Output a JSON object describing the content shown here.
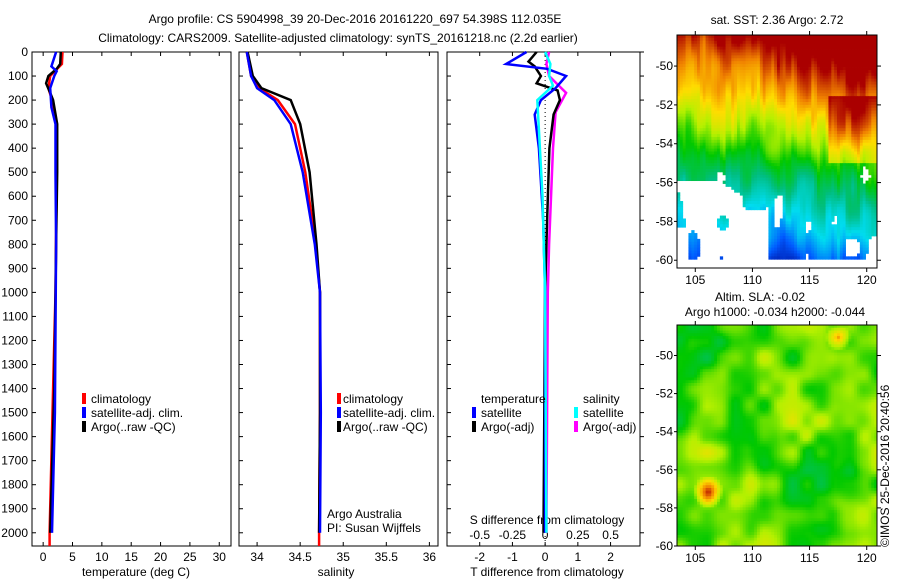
{
  "title_line1": "Argo profile: CS 5904998_39 20-Dec-2016 20161220_697 54.398S 112.035E",
  "title_line2": "Climatology: CARS2009. Satellite-adjusted climatology: synTS_20161218.nc (2.2d earlier)",
  "credit": "©IMOS 25-Dec-2016 20:40:56",
  "colors": {
    "climatology": "#ff0000",
    "satellite": "#0000ff",
    "argo": "#000000",
    "sal_satellite": "#00ffff",
    "sal_argo": "#ff00ff"
  },
  "chart_data": [
    {
      "type": "line",
      "name": "temperature",
      "xlabel": "temperature (deg C)",
      "xlim": [
        -1.9,
        32
      ],
      "xticks": [
        0,
        5,
        10,
        15,
        20,
        25,
        30
      ],
      "ylim": [
        0,
        2055
      ],
      "yticks": [
        0,
        100,
        200,
        300,
        400,
        500,
        600,
        700,
        800,
        900,
        1000,
        1100,
        1200,
        1300,
        1400,
        1500,
        1600,
        1700,
        1800,
        1900,
        2000
      ],
      "legend": [
        "climatology",
        "satellite-adj. clim.",
        "Argo(..raw -QC)"
      ],
      "series": [
        {
          "name": "climatology",
          "depth": [
            0,
            50,
            100,
            150,
            200,
            300,
            500,
            1000,
            1500,
            2000,
            2055
          ],
          "values": [
            3.3,
            3.2,
            1.2,
            0.9,
            1.5,
            2.3,
            2.3,
            2.1,
            1.6,
            1.1,
            1.1
          ]
        },
        {
          "name": "satellite-adj. clim.",
          "depth": [
            0,
            60,
            80,
            100,
            150,
            230,
            300,
            500,
            800,
            1500,
            2000
          ],
          "values": [
            2.2,
            1.4,
            2.3,
            1.9,
            1.2,
            1.4,
            2.1,
            2.1,
            2.2,
            2.0,
            1.5
          ]
        },
        {
          "name": "Argo(..raw -QC)",
          "depth": [
            0,
            50,
            70,
            100,
            130,
            170,
            200,
            300,
            500,
            800,
            1400,
            2000
          ],
          "values": [
            3.0,
            2.9,
            2.3,
            0.9,
            0.5,
            1.2,
            1.7,
            2.4,
            2.4,
            2.2,
            1.9,
            1.2
          ]
        }
      ]
    },
    {
      "type": "line",
      "name": "salinity",
      "xlabel": "salinity",
      "xlim": [
        33.79,
        36.1
      ],
      "xticks": [
        "34",
        "34.5",
        "35",
        "35.5",
        "36"
      ],
      "ylim": [
        0,
        2055
      ],
      "legend": [
        "climatology",
        "satellite-adj. clim.",
        "Argo(..raw -QC)"
      ],
      "annotation": [
        "Argo Australia",
        "PI: Susan Wijffels"
      ],
      "series": [
        {
          "name": "climatology",
          "depth": [
            0,
            100,
            150,
            200,
            300,
            500,
            800,
            1000,
            1500,
            2000,
            2055
          ],
          "values": [
            33.88,
            33.93,
            34.02,
            34.24,
            34.44,
            34.56,
            34.68,
            34.73,
            34.73,
            34.72,
            34.72
          ]
        },
        {
          "name": "satellite-adj. clim.",
          "depth": [
            0,
            100,
            150,
            200,
            300,
            500,
            800,
            1000,
            1500,
            2000
          ],
          "values": [
            33.88,
            33.93,
            34.0,
            34.2,
            34.39,
            34.53,
            34.67,
            34.73,
            34.74,
            34.73
          ]
        },
        {
          "name": "Argo(..raw -QC)",
          "depth": [
            0,
            100,
            150,
            200,
            300,
            500,
            800,
            1000,
            1500,
            2000
          ],
          "values": [
            33.89,
            33.95,
            34.05,
            34.39,
            34.5,
            34.61,
            34.69,
            34.73,
            34.73,
            34.72
          ]
        }
      ]
    },
    {
      "type": "line",
      "name": "difference",
      "xlabel": "T difference from climatology",
      "xlabel_top": "S difference from climatology",
      "xlim": [
        -3,
        2.9
      ],
      "xticks": [
        "-2",
        "-1",
        "0",
        "1",
        "2"
      ],
      "s_xticks": [
        "-0.5",
        "-0.25",
        "0",
        "0.25",
        "0.5"
      ],
      "legend_temperature": {
        "title": "temperature",
        "items": [
          "satellite",
          "Argo(-adj)"
        ]
      },
      "legend_salinity": {
        "title": "salinity",
        "items": [
          "satellite",
          "Argo(-adj)"
        ]
      },
      "series": [
        {
          "name": "T satellite",
          "units": "degC",
          "depth": [
            0,
            50,
            70,
            100,
            150,
            200,
            260,
            400,
            700,
            1000,
            2000
          ],
          "values": [
            -0.57,
            -1.19,
            0.06,
            0.64,
            0.32,
            -0.13,
            -0.32,
            -0.19,
            -0.06,
            0,
            0
          ]
        },
        {
          "name": "T Argo(-adj)",
          "units": "degC",
          "depth": [
            0,
            40,
            60,
            100,
            130,
            160,
            200,
            260,
            400,
            700,
            1000,
            2000
          ],
          "values": [
            -0.26,
            -0.51,
            -0.32,
            -0.13,
            -0.26,
            0.38,
            0.45,
            0.26,
            0.13,
            0.06,
            0,
            -0.05
          ]
        },
        {
          "name": "S satellite",
          "units": "psu",
          "depth": [
            0,
            50,
            100,
            140,
            200,
            300,
            600,
            1000,
            2000
          ],
          "values": [
            0,
            0.04,
            0.03,
            0.06,
            -0.06,
            -0.05,
            -0.02,
            0,
            0.01
          ]
        },
        {
          "name": "S Argo(-adj)",
          "units": "psu",
          "depth": [
            0,
            50,
            100,
            170,
            250,
            400,
            800,
            1000,
            2000
          ],
          "values": [
            0.03,
            0.01,
            0.03,
            0.16,
            0.08,
            0.06,
            0.03,
            0.02,
            0.01
          ]
        }
      ]
    },
    {
      "type": "heatmap",
      "name": "sst-map",
      "title": "sat. SST: 2.36 Argo: 2.72",
      "xlim": [
        103.4,
        120.9
      ],
      "ylim": [
        -60.4,
        -48.4
      ],
      "xticks": [
        "105",
        "110",
        "115",
        "120"
      ],
      "yticks": [
        "-50",
        "-52",
        "-54",
        "-56",
        "-58",
        "-60"
      ]
    },
    {
      "type": "heatmap",
      "name": "sla-map",
      "title": "Altim. SLA: -0.02",
      "subtitle": "Argo h1000: -0.034 h2000: -0.044",
      "xlim": [
        103.4,
        120.9
      ],
      "ylim": [
        -60,
        -48.4
      ],
      "xticks": [
        "105",
        "110",
        "115",
        "120"
      ],
      "yticks": [
        "-50",
        "-52",
        "-54",
        "-56",
        "-58",
        "-60"
      ]
    }
  ]
}
